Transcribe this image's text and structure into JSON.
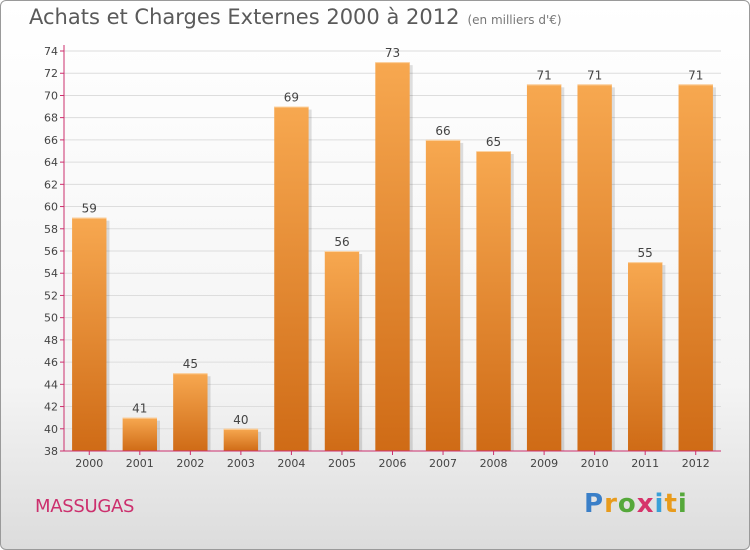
{
  "title": "Achats et Charges Externes 2000 à 2012",
  "unit": "(en milliers d'€)",
  "commune": "MASSUGAS",
  "logo": {
    "letters": [
      "P",
      "r",
      "o",
      "x",
      "i",
      "t",
      "i"
    ],
    "colors": [
      "#3a7fc8",
      "#e89b1c",
      "#55a83a",
      "#d6336a",
      "#3aa0d8",
      "#e89b1c",
      "#55a83a"
    ]
  },
  "colors": {
    "bar_light": "#f7a850",
    "bar_dark": "#cf6b16",
    "axis": "#cc2f6d",
    "grid": "#dddddd"
  },
  "chart_data": {
    "type": "bar",
    "categories": [
      "2000",
      "2001",
      "2002",
      "2003",
      "2004",
      "2005",
      "2006",
      "2007",
      "2008",
      "2009",
      "2010",
      "2011",
      "2012"
    ],
    "values": [
      59,
      41,
      45,
      40,
      69,
      56,
      73,
      66,
      65,
      71,
      71,
      55,
      71
    ],
    "ylim": [
      38,
      74
    ],
    "yticks": [
      38,
      40,
      42,
      44,
      46,
      48,
      50,
      52,
      54,
      56,
      58,
      60,
      62,
      64,
      66,
      68,
      70,
      72,
      74
    ],
    "grid": true
  }
}
